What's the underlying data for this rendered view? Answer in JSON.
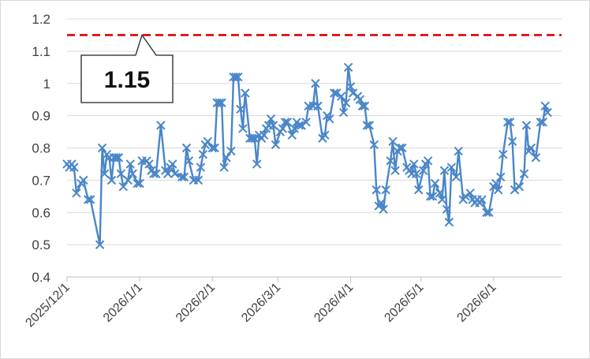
{
  "chart_data": {
    "type": "line",
    "ylim": [
      0.4,
      1.2
    ],
    "yticks": [
      0.4,
      0.5,
      0.6,
      0.7,
      0.8,
      0.9,
      1,
      1.1,
      1.2
    ],
    "ytick_labels": [
      "0.4",
      "0.5",
      "0.6",
      "0.7",
      "0.8",
      "0.9",
      "1",
      "1.1",
      "1.2"
    ],
    "xlim": [
      "2025-12-01",
      "2026-06-30"
    ],
    "xtick_dates": [
      "2025-12-01",
      "2026-01-01",
      "2026-02-01",
      "2026-03-01",
      "2026-04-01",
      "2026-05-01",
      "2026-06-01"
    ],
    "xtick_labels": [
      "2025/12/1",
      "2026/1/1",
      "2026/2/1",
      "2026/3/1",
      "2026/4/1",
      "2026/5/1",
      "2026/6/1"
    ],
    "grid": "horizontal",
    "series_color": "#4a86c8",
    "marker": "x",
    "reference_line": {
      "value": 1.15,
      "color": "#e00000",
      "style": "dashed"
    },
    "callout": {
      "text": "1.15"
    },
    "series": [
      {
        "x": [
          "2025-12-01",
          "2025-12-02",
          "2025-12-03",
          "2025-12-04",
          "2025-12-05",
          "2025-12-07",
          "2025-12-08",
          "2025-12-10",
          "2025-12-11",
          "2025-12-15",
          "2025-12-16",
          "2025-12-17",
          "2025-12-18",
          "2025-12-19",
          "2025-12-20",
          "2025-12-21",
          "2025-12-22",
          "2025-12-23",
          "2025-12-24",
          "2025-12-25",
          "2025-12-27",
          "2025-12-28",
          "2025-12-29",
          "2025-12-31",
          "2026-01-01",
          "2026-01-02",
          "2026-01-04",
          "2026-01-05",
          "2026-01-06",
          "2026-01-07",
          "2026-01-08",
          "2026-01-10",
          "2026-01-12",
          "2026-01-13",
          "2026-01-14",
          "2026-01-15",
          "2026-01-16",
          "2026-01-19",
          "2026-01-20",
          "2026-01-21",
          "2026-01-22",
          "2026-01-24",
          "2026-01-26",
          "2026-01-27",
          "2026-01-28",
          "2026-01-29",
          "2026-01-30",
          "2026-02-01",
          "2026-02-02",
          "2026-02-03",
          "2026-02-04",
          "2026-02-05",
          "2026-02-06",
          "2026-02-07",
          "2026-02-09",
          "2026-02-10",
          "2026-02-11",
          "2026-02-12",
          "2026-02-13",
          "2026-02-14",
          "2026-02-15",
          "2026-02-17",
          "2026-02-18",
          "2026-02-19",
          "2026-02-20",
          "2026-02-21",
          "2026-02-22",
          "2026-02-23",
          "2026-02-24",
          "2026-02-25",
          "2026-02-26",
          "2026-02-27",
          "2026-02-28",
          "2026-03-02",
          "2026-03-03",
          "2026-03-04",
          "2026-03-05",
          "2026-03-07",
          "2026-03-08",
          "2026-03-09",
          "2026-03-10",
          "2026-03-11",
          "2026-03-13",
          "2026-03-14",
          "2026-03-16",
          "2026-03-17",
          "2026-03-18",
          "2026-03-20",
          "2026-03-21",
          "2026-03-22",
          "2026-03-23",
          "2026-03-25",
          "2026-03-26",
          "2026-03-28",
          "2026-03-29",
          "2026-03-30",
          "2026-03-31",
          "2026-04-01",
          "2026-04-02",
          "2026-04-04",
          "2026-04-05",
          "2026-04-06",
          "2026-04-07",
          "2026-04-08",
          "2026-04-09",
          "2026-04-11",
          "2026-04-12",
          "2026-04-13",
          "2026-04-14",
          "2026-04-15",
          "2026-04-16",
          "2026-04-18",
          "2026-04-19",
          "2026-04-20",
          "2026-04-21",
          "2026-04-22",
          "2026-04-23",
          "2026-04-25",
          "2026-04-26",
          "2026-04-27",
          "2026-04-28",
          "2026-04-29",
          "2026-04-30",
          "2026-05-02",
          "2026-05-03",
          "2026-05-04",
          "2026-05-05",
          "2026-05-06",
          "2026-05-07",
          "2026-05-09",
          "2026-05-10",
          "2026-05-11",
          "2026-05-12",
          "2026-05-13",
          "2026-05-14",
          "2026-05-16",
          "2026-05-17",
          "2026-05-19",
          "2026-05-20",
          "2026-05-22",
          "2026-05-23",
          "2026-05-24",
          "2026-05-25",
          "2026-05-26",
          "2026-05-27",
          "2026-05-29",
          "2026-05-30",
          "2026-06-01",
          "2026-06-02",
          "2026-06-03",
          "2026-06-04",
          "2026-06-05",
          "2026-06-07",
          "2026-06-08",
          "2026-06-09",
          "2026-06-10",
          "2026-06-12",
          "2026-06-14",
          "2026-06-15",
          "2026-06-16",
          "2026-06-17",
          "2026-06-19",
          "2026-06-21",
          "2026-06-22",
          "2026-06-23",
          "2026-06-24"
        ],
        "values": [
          0.75,
          0.74,
          0.75,
          0.74,
          0.66,
          0.69,
          0.7,
          0.64,
          0.64,
          0.5,
          0.8,
          0.72,
          0.78,
          0.77,
          0.7,
          0.77,
          0.77,
          0.77,
          0.72,
          0.68,
          0.7,
          0.75,
          0.72,
          0.69,
          0.69,
          0.76,
          0.76,
          0.75,
          0.73,
          0.72,
          0.72,
          0.87,
          0.73,
          0.72,
          0.74,
          0.75,
          0.72,
          0.71,
          0.71,
          0.8,
          0.76,
          0.7,
          0.7,
          0.74,
          0.78,
          0.81,
          0.82,
          0.8,
          0.8,
          0.94,
          0.94,
          0.94,
          0.74,
          0.77,
          0.79,
          1.02,
          1.02,
          1.02,
          0.92,
          0.86,
          0.97,
          0.83,
          0.83,
          0.83,
          0.75,
          0.84,
          0.83,
          0.84,
          0.86,
          0.87,
          0.89,
          0.87,
          0.81,
          0.85,
          0.86,
          0.88,
          0.88,
          0.84,
          0.86,
          0.88,
          0.87,
          0.87,
          0.88,
          0.93,
          0.93,
          1.0,
          0.93,
          0.83,
          0.84,
          0.9,
          0.89,
          0.97,
          0.97,
          0.96,
          0.91,
          0.94,
          1.05,
          0.99,
          0.97,
          0.96,
          0.95,
          0.93,
          0.93,
          0.87,
          0.87,
          0.81,
          0.67,
          0.62,
          0.63,
          0.61,
          0.67,
          0.76,
          0.82,
          0.73,
          0.79,
          0.8,
          0.8,
          0.74,
          0.73,
          0.72,
          0.75,
          0.72,
          0.67,
          0.73,
          0.75,
          0.76,
          0.65,
          0.65,
          0.69,
          0.66,
          0.64,
          0.73,
          0.61,
          0.57,
          0.74,
          0.71,
          0.79,
          0.64,
          0.65,
          0.66,
          0.64,
          0.63,
          0.64,
          0.63,
          0.64,
          0.6,
          0.6,
          0.68,
          0.69,
          0.67,
          0.71,
          0.78,
          0.88,
          0.88,
          0.82,
          0.67,
          0.68,
          0.72,
          0.87,
          0.79,
          0.8,
          0.77,
          0.88,
          0.88,
          0.93,
          0.91
        ]
      }
    ]
  }
}
